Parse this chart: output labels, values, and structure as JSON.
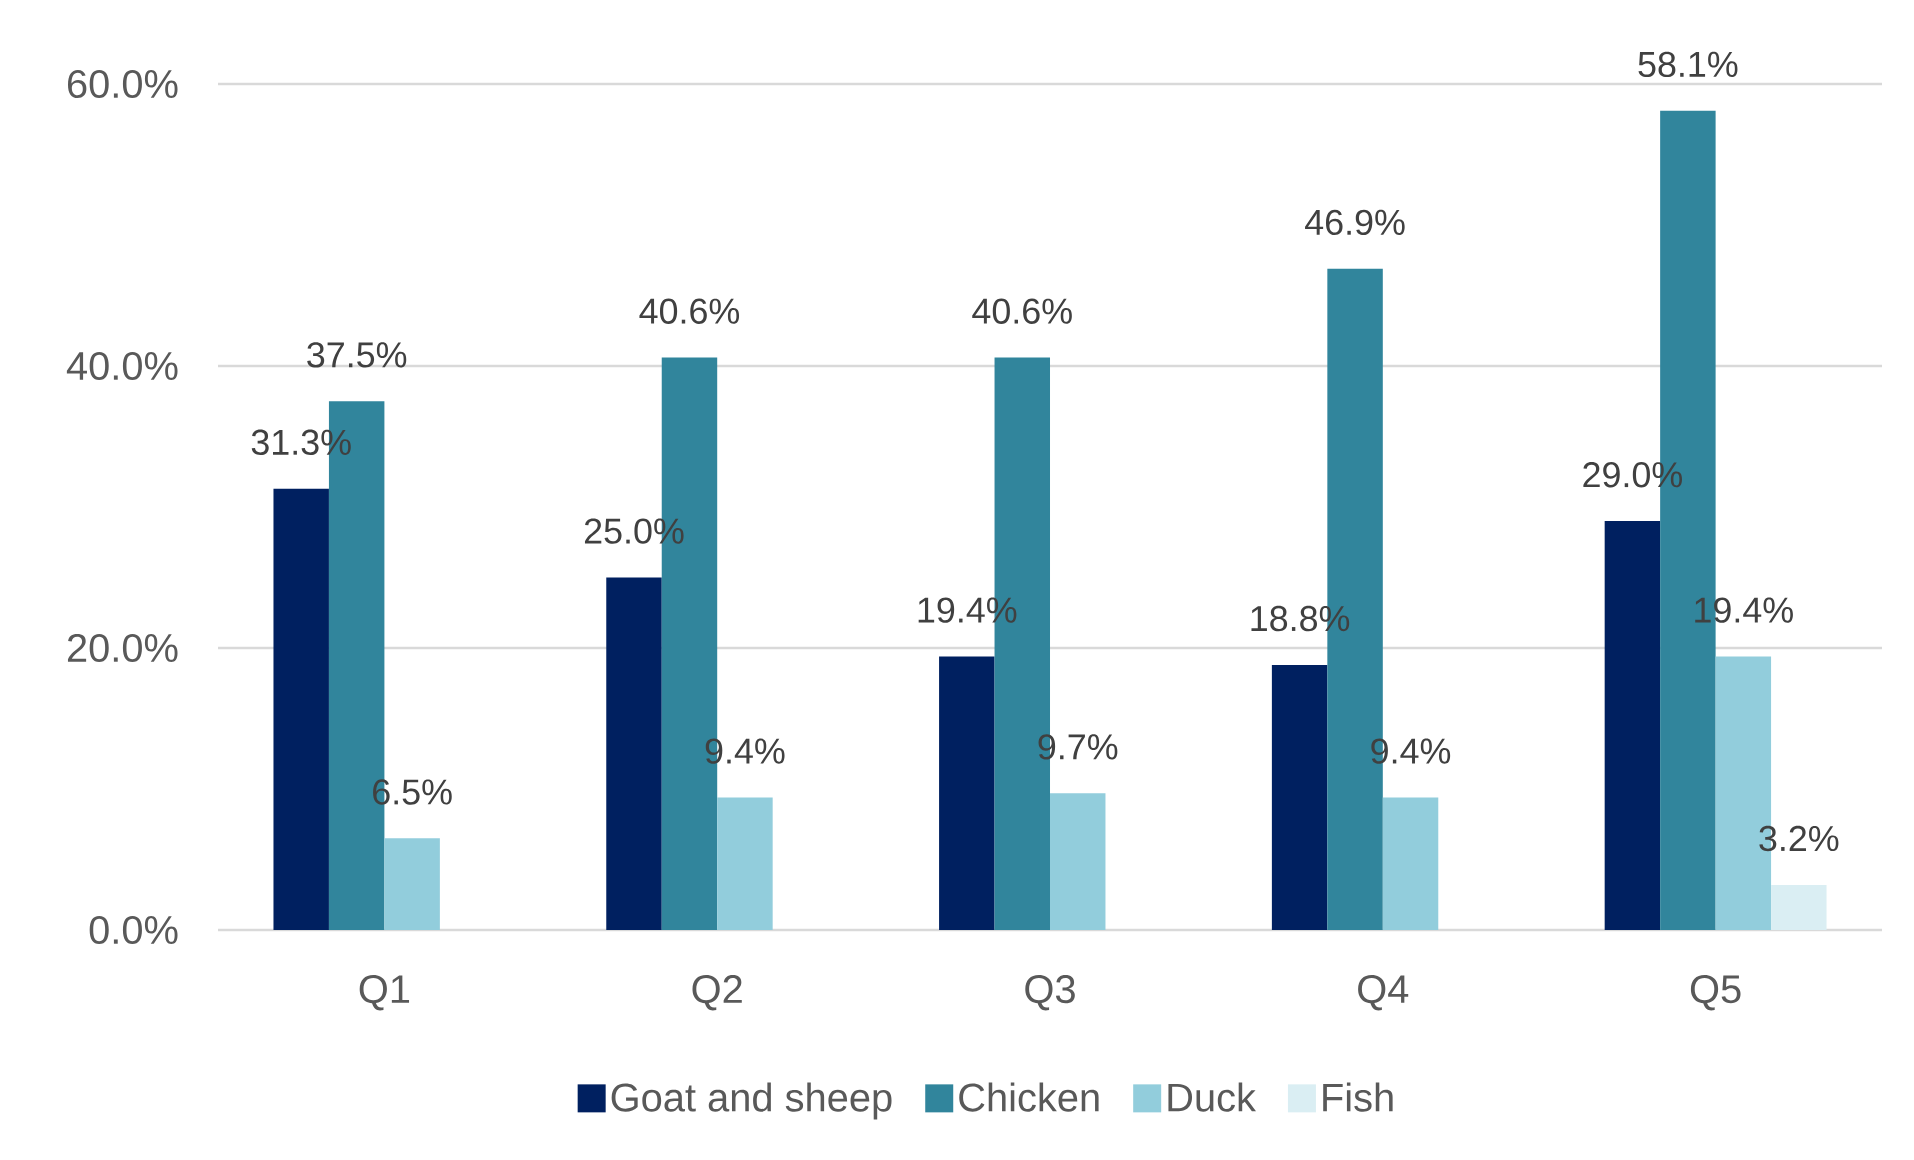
{
  "chart_data": {
    "type": "bar",
    "categories": [
      "Q1",
      "Q2",
      "Q3",
      "Q4",
      "Q5"
    ],
    "series": [
      {
        "name": "Goat and sheep",
        "color": "#002060",
        "values": [
          31.3,
          25.0,
          19.4,
          18.8,
          29.0
        ],
        "value_labels": [
          "31.3%",
          "25.0%",
          "19.4%",
          "18.8%",
          "29.0%"
        ]
      },
      {
        "name": "Chicken",
        "color": "#31859C",
        "values": [
          37.5,
          40.6,
          40.6,
          46.9,
          58.1
        ],
        "value_labels": [
          "37.5%",
          "40.6%",
          "40.6%",
          "46.9%",
          "58.1%"
        ]
      },
      {
        "name": "Duck",
        "color": "#92CDDC",
        "values": [
          6.5,
          9.4,
          9.7,
          9.4,
          19.4
        ],
        "value_labels": [
          "6.5%",
          "9.4%",
          "9.7%",
          "9.4%",
          "19.4%"
        ]
      },
      {
        "name": "Fish",
        "color": "#DAEEF3",
        "values": [
          null,
          null,
          null,
          null,
          3.2
        ],
        "value_labels": [
          null,
          null,
          null,
          null,
          "3.2%"
        ]
      }
    ],
    "ylim": [
      0,
      60
    ],
    "yticks": [
      {
        "value": 0,
        "label": "0.0%"
      },
      {
        "value": 20,
        "label": "20.0%"
      },
      {
        "value": 40,
        "label": "40.0%"
      },
      {
        "value": 60,
        "label": "60.0%"
      }
    ],
    "grid": "y",
    "legend": "bottom"
  }
}
